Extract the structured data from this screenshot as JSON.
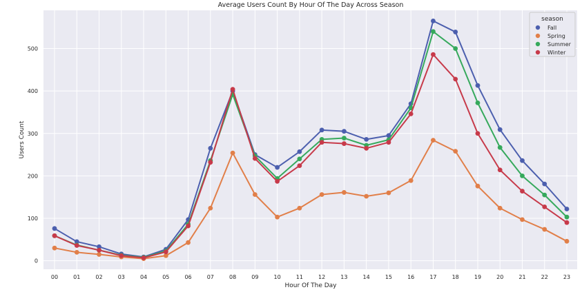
{
  "chart_data": {
    "type": "line",
    "title": "Average Users Count By Hour Of The Day Across Season",
    "xlabel": "Hour Of The Day",
    "ylabel": "Users Count",
    "categories": [
      "00",
      "01",
      "02",
      "03",
      "04",
      "05",
      "06",
      "07",
      "08",
      "09",
      "10",
      "11",
      "12",
      "13",
      "14",
      "15",
      "16",
      "17",
      "18",
      "19",
      "20",
      "21",
      "22",
      "23"
    ],
    "ylim": [
      -20,
      590
    ],
    "yticks": [
      0,
      100,
      200,
      300,
      400,
      500
    ],
    "grid": true,
    "legend_title": "season",
    "legend_position": "top-right",
    "series": [
      {
        "name": "Fall",
        "color": "#4c5fae",
        "values": [
          76,
          45,
          33,
          16,
          9,
          27,
          97,
          265,
          400,
          250,
          220,
          257,
          308,
          305,
          286,
          295,
          370,
          565,
          539,
          413,
          309,
          236,
          181,
          122
        ]
      },
      {
        "name": "Spring",
        "color": "#e17f49",
        "values": [
          30,
          20,
          15,
          9,
          5,
          12,
          43,
          124,
          254,
          156,
          103,
          124,
          156,
          161,
          152,
          160,
          189,
          284,
          258,
          176,
          124,
          97,
          74,
          46
        ]
      },
      {
        "name": "Summer",
        "color": "#36a95c",
        "values": [
          59,
          37,
          25,
          13,
          8,
          23,
          86,
          236,
          392,
          247,
          194,
          240,
          286,
          289,
          272,
          285,
          360,
          540,
          500,
          372,
          267,
          200,
          155,
          103
        ]
      },
      {
        "name": "Winter",
        "color": "#c73a4a",
        "values": [
          59,
          36,
          25,
          12,
          7,
          21,
          82,
          232,
          404,
          241,
          187,
          224,
          279,
          276,
          265,
          279,
          346,
          486,
          428,
          300,
          214,
          164,
          127,
          90
        ]
      }
    ]
  }
}
